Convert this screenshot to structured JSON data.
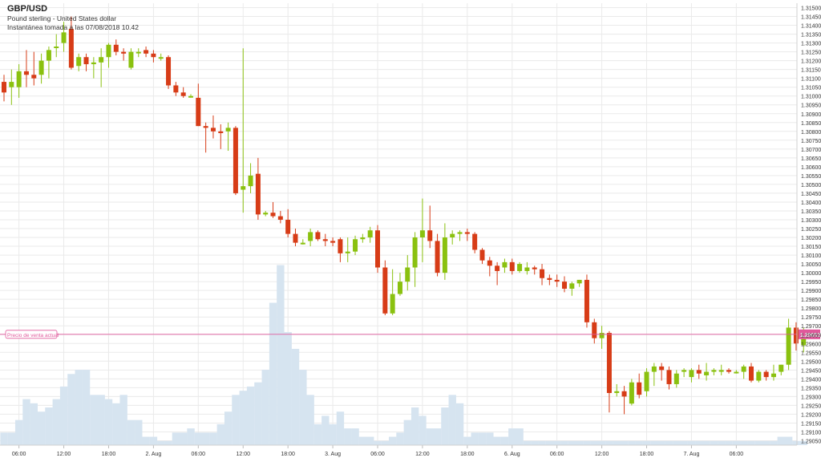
{
  "chart_data": {
    "type": "candlestick",
    "title": "GBP/USD",
    "subtitle": "Pound sterling - United States dollar",
    "snapshot": "Instantánea tomada a las 07/08/2018 10.42",
    "y_ticks": [
      "1.31500",
      "1.31450",
      "1.31400",
      "1.31350",
      "1.31300",
      "1.31250",
      "1.31200",
      "1.31150",
      "1.31100",
      "1.31050",
      "1.31000",
      "1.30950",
      "1.30900",
      "1.30850",
      "1.30800",
      "1.30750",
      "1.30700",
      "1.30650",
      "1.30600",
      "1.30550",
      "1.30500",
      "1.30450",
      "1.30400",
      "1.30350",
      "1.30300",
      "1.30250",
      "1.30200",
      "1.30150",
      "1.30100",
      "1.30050",
      "1.30000",
      "1.29950",
      "1.29900",
      "1.29850",
      "1.29800",
      "1.29750",
      "1.29700",
      "1.29650",
      "1.29600",
      "1.29550",
      "1.29500",
      "1.29450",
      "1.29400",
      "1.29350",
      "1.29300",
      "1.29250",
      "1.29200",
      "1.29150",
      "1.29100",
      "1.29050"
    ],
    "ylim": [
      1.29025,
      1.31525
    ],
    "x_ticks": [
      "06:00",
      "12:00",
      "18:00",
      "2. Aug",
      "06:00",
      "12:00",
      "18:00",
      "3. Aug",
      "06:00",
      "12:00",
      "18:00",
      "6. Aug",
      "06:00",
      "12:00",
      "18:00",
      "7. Aug",
      "06:00"
    ],
    "current_price": {
      "label": "Precio de venta actual",
      "value": "1.29652"
    },
    "colors": {
      "up": "#8ac10f",
      "down": "#d73c17",
      "volume": "#d6e4f0",
      "price_line": "#e0599b",
      "grid": "#eaeaea"
    },
    "candles": [
      [
        1.3108,
        1.3112,
        1.3097,
        1.3102
      ],
      [
        1.3105,
        1.3115,
        1.3095,
        1.3108
      ],
      [
        1.3105,
        1.3118,
        1.3099,
        1.3114
      ],
      [
        1.3114,
        1.3126,
        1.3105,
        1.3112
      ],
      [
        1.3112,
        1.3125,
        1.3106,
        1.311
      ],
      [
        1.3112,
        1.3124,
        1.3107,
        1.312
      ],
      [
        1.312,
        1.3128,
        1.311,
        1.3126
      ],
      [
        1.3128,
        1.3135,
        1.3122,
        1.3128
      ],
      [
        1.313,
        1.3142,
        1.3125,
        1.3136
      ],
      [
        1.3138,
        1.3145,
        1.3115,
        1.3116
      ],
      [
        1.3117,
        1.3124,
        1.3114,
        1.3122
      ],
      [
        1.3122,
        1.3124,
        1.3114,
        1.3118
      ],
      [
        1.3118,
        1.3122,
        1.311,
        1.3119
      ],
      [
        1.3119,
        1.3127,
        1.3105,
        1.3122
      ],
      [
        1.3122,
        1.313,
        1.3116,
        1.3129
      ],
      [
        1.3129,
        1.3132,
        1.3123,
        1.3125
      ],
      [
        1.3125,
        1.3127,
        1.312,
        1.3124
      ],
      [
        1.3116,
        1.3127,
        1.3115,
        1.3125
      ],
      [
        1.3125,
        1.3127,
        1.3122,
        1.3125
      ],
      [
        1.3126,
        1.3128,
        1.3122,
        1.3124
      ],
      [
        1.3124,
        1.3126,
        1.3119,
        1.3122
      ],
      [
        1.3122,
        1.3124,
        1.312,
        1.3122
      ],
      [
        1.3122,
        1.3123,
        1.3104,
        1.3106
      ],
      [
        1.3106,
        1.3108,
        1.31,
        1.3102
      ],
      [
        1.3102,
        1.3105,
        1.3099,
        1.31
      ],
      [
        1.31,
        1.3101,
        1.3099,
        1.31
      ],
      [
        1.3099,
        1.3107,
        1.3083,
        1.3083
      ],
      [
        1.3083,
        1.3085,
        1.3068,
        1.3082
      ],
      [
        1.3082,
        1.3089,
        1.3076,
        1.308
      ],
      [
        1.308,
        1.3084,
        1.307,
        1.3079
      ],
      [
        1.308,
        1.3085,
        1.3069,
        1.3082
      ],
      [
        1.3082,
        1.3083,
        1.3044,
        1.3045
      ],
      [
        1.3047,
        1.3127,
        1.3034,
        1.3049
      ],
      [
        1.3049,
        1.3062,
        1.3045,
        1.3055
      ],
      [
        1.3056,
        1.3065,
        1.303,
        1.3033
      ],
      [
        1.3033,
        1.3035,
        1.3032,
        1.3034
      ],
      [
        1.3034,
        1.304,
        1.3031,
        1.3032
      ],
      [
        1.3032,
        1.3035,
        1.3028,
        1.303
      ],
      [
        1.303,
        1.3036,
        1.302,
        1.3022
      ],
      [
        1.3022,
        1.3025,
        1.3015,
        1.3017
      ],
      [
        1.3017,
        1.3019,
        1.3016,
        1.3017
      ],
      [
        1.3018,
        1.3025,
        1.3015,
        1.3023
      ],
      [
        1.3023,
        1.3024,
        1.3018,
        1.3019
      ],
      [
        1.3019,
        1.3022,
        1.3015,
        1.3018
      ],
      [
        1.3018,
        1.302,
        1.3015,
        1.3017
      ],
      [
        1.3019,
        1.302,
        1.3006,
        1.3011
      ],
      [
        1.3011,
        1.302,
        1.3006,
        1.3012
      ],
      [
        1.3012,
        1.3021,
        1.301,
        1.3019
      ],
      [
        1.3019,
        1.3022,
        1.3017,
        1.302
      ],
      [
        1.302,
        1.3026,
        1.3017,
        1.3024
      ],
      [
        1.3024,
        1.3027,
        1.3,
        1.3003
      ],
      [
        1.3003,
        1.3007,
        1.2976,
        1.2977
      ],
      [
        1.2977,
        1.3002,
        1.2976,
        1.2988
      ],
      [
        1.2988,
        1.3,
        1.2987,
        1.2995
      ],
      [
        1.2995,
        1.301,
        1.299,
        1.3003
      ],
      [
        1.3003,
        1.3023,
        1.2992,
        1.302
      ],
      [
        1.302,
        1.3042,
        1.3006,
        1.3024
      ],
      [
        1.3024,
        1.3038,
        1.3014,
        1.3018
      ],
      [
        1.3018,
        1.3022,
        1.2998,
        1.3
      ],
      [
        1.3,
        1.3028,
        1.2996,
        1.302
      ],
      [
        1.302,
        1.3024,
        1.3016,
        1.3022
      ],
      [
        1.3022,
        1.3024,
        1.3018,
        1.3023
      ],
      [
        1.3023,
        1.3025,
        1.3018,
        1.3022
      ],
      [
        1.3022,
        1.3023,
        1.3011,
        1.3013
      ],
      [
        1.3013,
        1.3014,
        1.3005,
        1.3007
      ],
      [
        1.3007,
        1.3009,
        1.2998,
        1.3004
      ],
      [
        1.3004,
        1.3006,
        1.2993,
        1.3001
      ],
      [
        1.3003,
        1.3008,
        1.3,
        1.3006
      ],
      [
        1.3006,
        1.3008,
        1.2999,
        1.3001
      ],
      [
        1.3001,
        1.3006,
        1.3,
        1.3005
      ],
      [
        1.3001,
        1.3006,
        1.2999,
        1.3003
      ],
      [
        1.3003,
        1.3004,
        1.2999,
        1.3002
      ],
      [
        1.3002,
        1.3005,
        1.2993,
        1.2997
      ],
      [
        1.2997,
        1.2999,
        1.2993,
        1.2996
      ],
      [
        1.2996,
        1.2999,
        1.2992,
        1.2995
      ],
      [
        1.2995,
        1.2998,
        1.2989,
        1.2991
      ],
      [
        1.2991,
        1.2995,
        1.2987,
        1.2994
      ],
      [
        1.2994,
        1.2996,
        1.2992,
        1.2996
      ],
      [
        1.2996,
        1.2999,
        1.2969,
        1.2972
      ],
      [
        1.2972,
        1.2974,
        1.296,
        1.2963
      ],
      [
        1.2963,
        1.297,
        1.2957,
        1.2966
      ],
      [
        1.2966,
        1.2967,
        1.2921,
        1.2932
      ],
      [
        1.2932,
        1.2937,
        1.293,
        1.2933
      ],
      [
        1.2933,
        1.2936,
        1.292,
        1.293
      ],
      [
        1.2926,
        1.294,
        1.2925,
        1.2938
      ],
      [
        1.2938,
        1.2943,
        1.2929,
        1.2931
      ],
      [
        1.2933,
        1.2946,
        1.293,
        1.2944
      ],
      [
        1.2944,
        1.2949,
        1.2936,
        1.2947
      ],
      [
        1.2947,
        1.2949,
        1.2939,
        1.2945
      ],
      [
        1.2945,
        1.2947,
        1.2934,
        1.2937
      ],
      [
        1.2937,
        1.2945,
        1.2935,
        1.2943
      ],
      [
        1.2944,
        1.2946,
        1.2941,
        1.2945
      ],
      [
        1.2941,
        1.2946,
        1.2938,
        1.2945
      ],
      [
        1.2945,
        1.2948,
        1.294,
        1.2943
      ],
      [
        1.2942,
        1.2949,
        1.2939,
        1.2944
      ],
      [
        1.2944,
        1.2946,
        1.2942,
        1.2945
      ],
      [
        1.2944,
        1.2948,
        1.2942,
        1.2945
      ],
      [
        1.2945,
        1.2946,
        1.2943,
        1.2944
      ],
      [
        1.2944,
        1.2945,
        1.2943,
        1.2944
      ],
      [
        1.2944,
        1.2948,
        1.294,
        1.2947
      ],
      [
        1.2947,
        1.2949,
        1.2938,
        1.2939
      ],
      [
        1.2939,
        1.2945,
        1.2938,
        1.2944
      ],
      [
        1.2944,
        1.2945,
        1.2939,
        1.2941
      ],
      [
        1.2941,
        1.2948,
        1.2939,
        1.2943
      ],
      [
        1.2944,
        1.2948,
        1.2942,
        1.2948
      ],
      [
        1.2948,
        1.2974,
        1.2945,
        1.2969
      ],
      [
        1.2969,
        1.2972,
        1.2956,
        1.296
      ],
      [
        1.2959,
        1.2969,
        1.2955,
        1.2967
      ]
    ],
    "volume_scale_max": 100,
    "volumes": [
      6,
      6,
      12,
      22,
      20,
      16,
      18,
      22,
      28,
      34,
      36,
      36,
      24,
      24,
      22,
      20,
      24,
      12,
      12,
      4,
      4,
      2,
      2,
      6,
      6,
      8,
      6,
      6,
      6,
      10,
      16,
      24,
      26,
      28,
      30,
      36,
      68,
      86,
      54,
      46,
      36,
      24,
      10,
      14,
      10,
      16,
      8,
      8,
      4,
      4,
      2,
      2,
      4,
      6,
      12,
      18,
      14,
      8,
      8,
      18,
      24,
      20,
      4,
      6,
      6,
      6,
      4,
      4,
      8,
      8,
      2,
      2,
      2,
      2,
      2,
      2,
      2,
      2,
      2,
      2,
      2,
      2,
      2,
      2,
      2,
      2,
      2,
      2,
      2,
      2,
      2,
      2,
      2,
      2,
      2,
      2,
      2,
      2,
      2,
      2,
      2,
      2,
      2,
      2,
      4,
      4,
      2,
      2
    ]
  }
}
